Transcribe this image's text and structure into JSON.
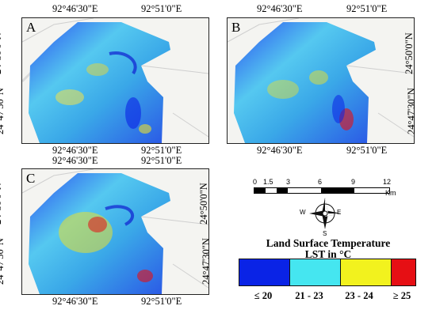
{
  "panels": [
    {
      "letter": "A"
    },
    {
      "letter": "B"
    },
    {
      "letter": "C"
    }
  ],
  "coords": {
    "lon_left": "92°46'30\"E",
    "lon_right": "92°51'0\"E",
    "lat_top": "24°50'0\"N",
    "lat_bottom": "24°47'30\"N"
  },
  "scalebar": {
    "ticks": [
      "0",
      "1.5",
      "3",
      "6",
      "9",
      "12"
    ],
    "unit": "Km"
  },
  "north_arrow": {
    "n": "N",
    "s": "S",
    "e": "E",
    "w": "W"
  },
  "legend": {
    "title": "Land Surface Temperature",
    "subtitle": "LST in °C",
    "classes": [
      {
        "label": "≤ 20",
        "color": "#0a23e6"
      },
      {
        "label": "21 - 23",
        "color": "#45e6f0"
      },
      {
        "label": "23 - 24",
        "color": "#f2f21e"
      },
      {
        "label": "≥ 25",
        "color": "#e60f14"
      }
    ]
  }
}
